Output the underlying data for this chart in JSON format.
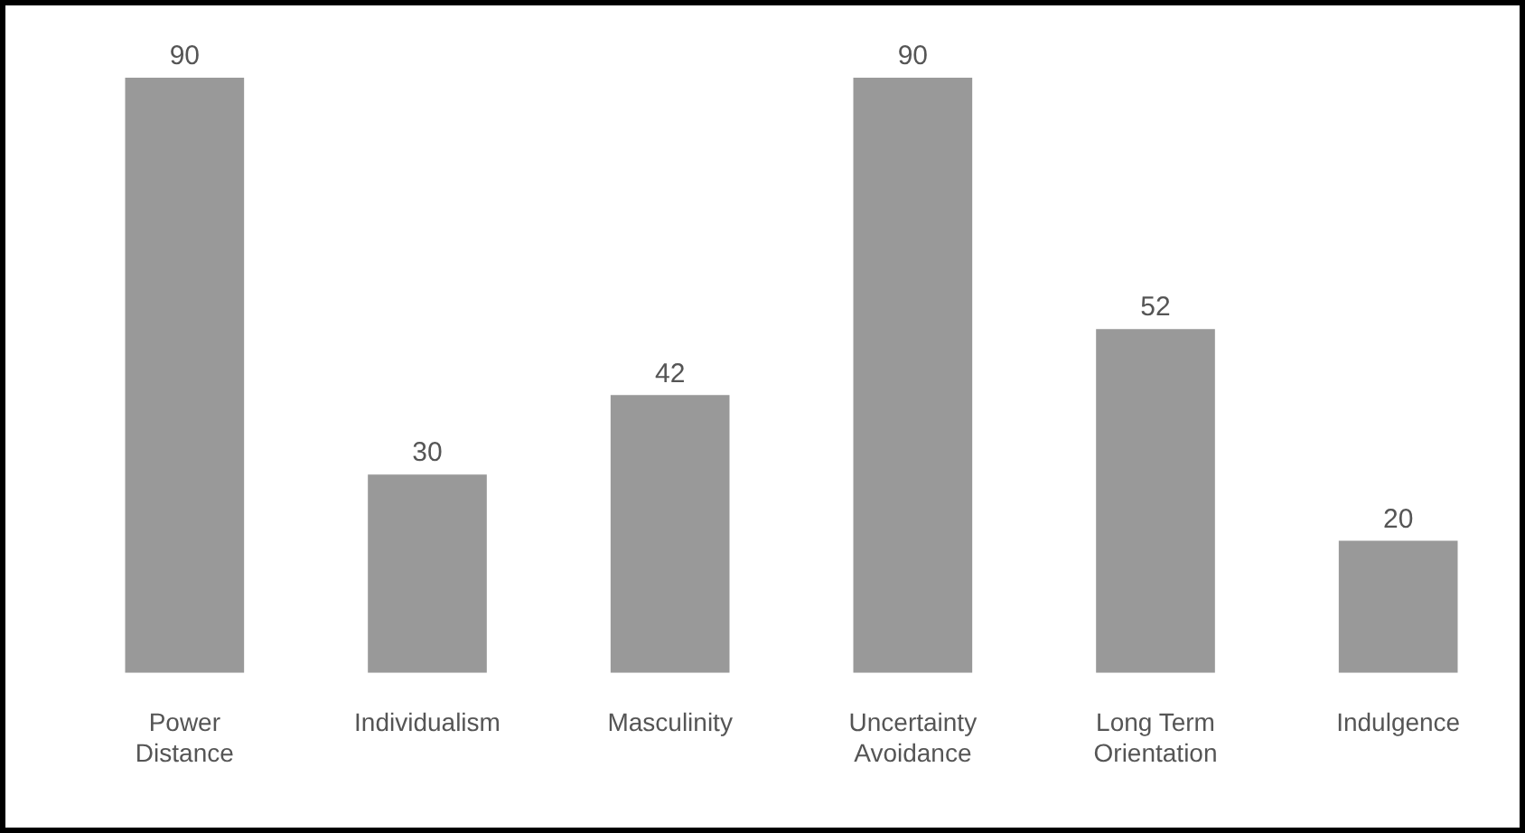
{
  "chart_data": {
    "type": "bar",
    "categories": [
      "Power Distance",
      "Individualism",
      "Masculinity",
      "Uncertainty Avoidance",
      "Long Term Orientation",
      "Indulgence"
    ],
    "values": [
      90,
      30,
      42,
      90,
      52,
      20
    ],
    "color": "#999999",
    "data_labels": true,
    "grid": false,
    "legend": false
  }
}
